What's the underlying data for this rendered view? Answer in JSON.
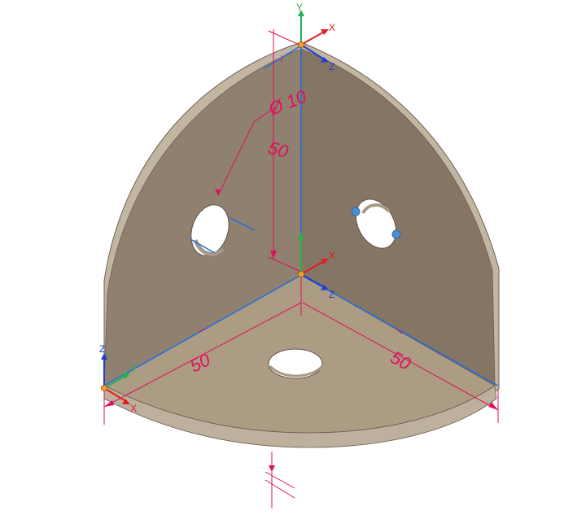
{
  "viewport": {
    "background": "#ffffff"
  },
  "colors": {
    "dimension": "#e0105a",
    "edge_highlight": "#1f6fe0",
    "face_back_left": "#8f8070",
    "face_back_right": "#857565",
    "face_floor": "#ab9c83",
    "rim": "#bfb3a0",
    "axis_x": "#e02020",
    "axis_y": "#22b14c",
    "axis_z": "#1d3fcf",
    "handle": "#4a8fd4"
  },
  "dimensions": {
    "hole_diameter": "Ø 10",
    "vertical_height": "50",
    "floor_left": "50",
    "floor_right": "50"
  },
  "axes": {
    "x_label": "X",
    "y_label": "Y",
    "z_label": "Z"
  }
}
